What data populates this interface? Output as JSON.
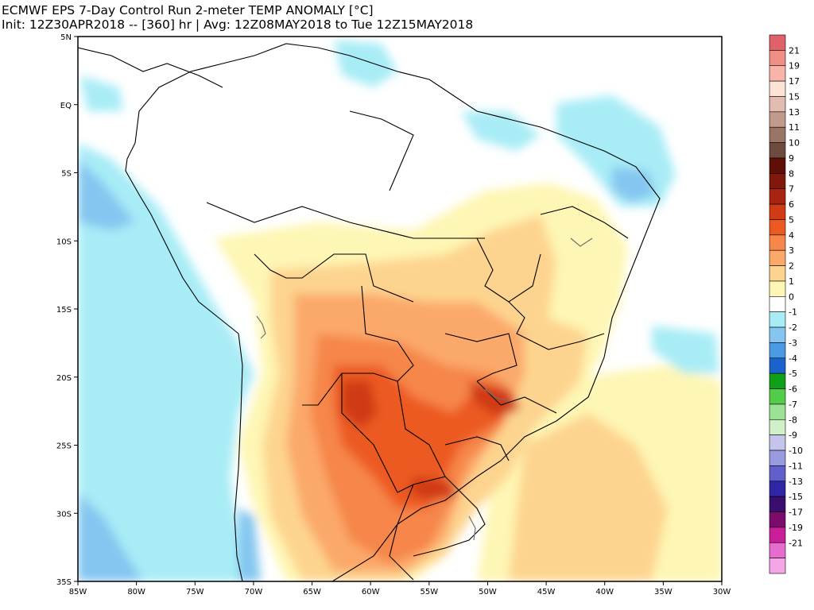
{
  "title": {
    "line1": "ECMWF EPS 7-Day Control Run 2-meter TEMP ANOMALY [°C]",
    "line2": "Init: 12Z30APR2018 -- [360] hr | Avg: 12Z08MAY2018 to Tue 12Z15MAY2018"
  },
  "axes": {
    "lon_labels": [
      "85W",
      "80W",
      "75W",
      "70W",
      "65W",
      "60W",
      "55W",
      "50W",
      "45W",
      "40W",
      "35W",
      "30W"
    ],
    "lat_labels": [
      "5N",
      "EQ",
      "5S",
      "10S",
      "15S",
      "20S",
      "25S",
      "30S",
      "35S"
    ],
    "lon_range": [
      -85,
      -30
    ],
    "lat_range": [
      -35,
      5
    ]
  },
  "colorbar": {
    "levels": [
      {
        "label": "21",
        "color": "#e0616a"
      },
      {
        "label": "19",
        "color": "#ef8f86"
      },
      {
        "label": "17",
        "color": "#f8b3aa"
      },
      {
        "label": "15",
        "color": "#fde3d6"
      },
      {
        "label": "13",
        "color": "#e2bcb0"
      },
      {
        "label": "11",
        "color": "#c09a8c"
      },
      {
        "label": "10",
        "color": "#9a7566"
      },
      {
        "label": "9",
        "color": "#6e4b3e"
      },
      {
        "label": "8",
        "color": "#5e0f08"
      },
      {
        "label": "7",
        "color": "#80190c"
      },
      {
        "label": "6",
        "color": "#a82410"
      },
      {
        "label": "5",
        "color": "#d03a14"
      },
      {
        "label": "4",
        "color": "#ec5a22"
      },
      {
        "label": "3",
        "color": "#f6864a"
      },
      {
        "label": "2",
        "color": "#fba96a"
      },
      {
        "label": "1",
        "color": "#fdd48f"
      },
      {
        "label": "0",
        "color": "#fef6b4"
      },
      {
        "label": "-1",
        "color": "#ffffff"
      },
      {
        "label": "-2",
        "color": "#a8ecf6"
      },
      {
        "label": "-3",
        "color": "#84c6f0"
      },
      {
        "label": "-4",
        "color": "#4a9ae4"
      },
      {
        "label": "-5",
        "color": "#1a63cc"
      },
      {
        "label": "-6",
        "color": "#10a018"
      },
      {
        "label": "-7",
        "color": "#52cc4a"
      },
      {
        "label": "-8",
        "color": "#9ce294"
      },
      {
        "label": "-9",
        "color": "#d0f0c8"
      },
      {
        "label": "-10",
        "color": "#c4c4ec"
      },
      {
        "label": "-11",
        "color": "#9a9ae0"
      },
      {
        "label": "-13",
        "color": "#6060cc"
      },
      {
        "label": "-15",
        "color": "#2e26a4"
      },
      {
        "label": "-17",
        "color": "#3a0e6e"
      },
      {
        "label": "-19",
        "color": "#7c0c6c"
      },
      {
        "label": "-21",
        "color": "#c81e98"
      },
      {
        "label": "",
        "color": "#e66cce"
      },
      {
        "label": "",
        "color": "#f4a6e6"
      }
    ]
  },
  "map_colors": {
    "land_outline": "#000000",
    "lakes": "#707070",
    "frame": "#000000"
  }
}
